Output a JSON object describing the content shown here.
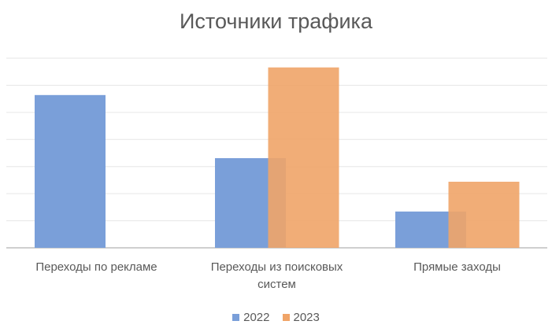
{
  "chart_data": {
    "type": "bar",
    "title": "Источники трафика",
    "categories": [
      "Переходы по рекламе",
      "Переходы из поисковых систем",
      "Прямые заходы"
    ],
    "series": [
      {
        "name": "2022",
        "color": "#7a9fd9",
        "values": [
          5.64,
          3.31,
          1.34
        ]
      },
      {
        "name": "2023",
        "color": "#f0a468",
        "values": [
          null,
          6.66,
          2.44
        ]
      }
    ],
    "ylim": [
      0,
      7
    ],
    "yticks": [
      0,
      1,
      2,
      3,
      4,
      5,
      6,
      7
    ],
    "grid": true,
    "legend": "bottom"
  }
}
